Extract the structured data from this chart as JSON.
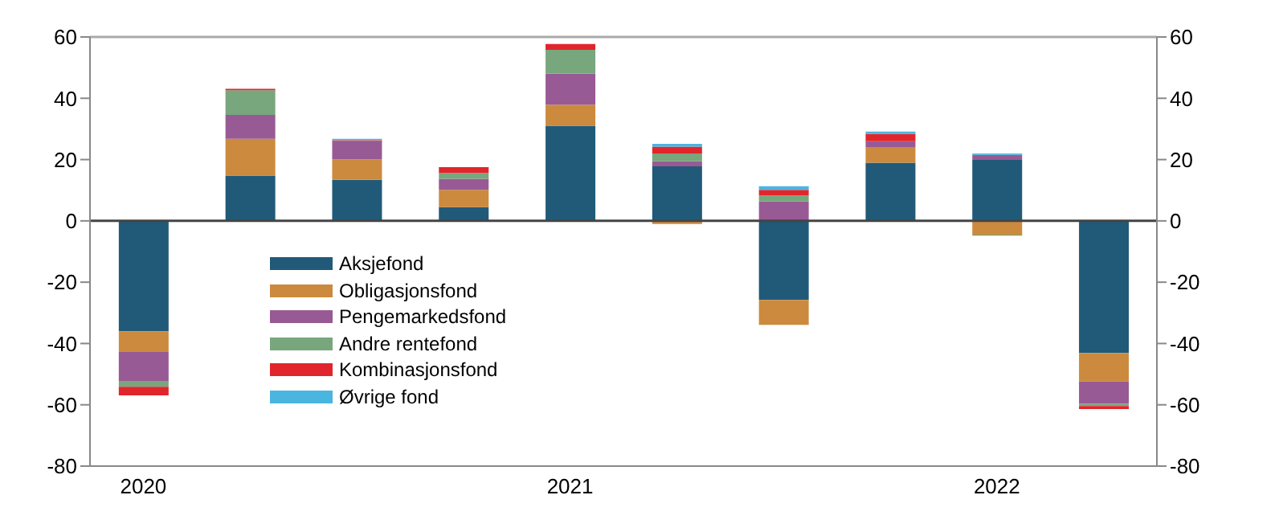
{
  "chart_data": {
    "type": "bar",
    "stacked": true,
    "categories": [
      "2020",
      null,
      null,
      null,
      "2021",
      null,
      null,
      null,
      "2022",
      null
    ],
    "series": [
      {
        "name": "Aksjefond",
        "color": "#215a78",
        "values": [
          -36,
          14.8,
          13.4,
          4.5,
          31,
          17.8,
          -25.8,
          19,
          19.9,
          -43.1
        ]
      },
      {
        "name": "Obligasjonsfond",
        "color": "#cc8a3e",
        "values": [
          -6.8,
          12,
          6.7,
          5.6,
          6.9,
          -1,
          -8.1,
          5.1,
          -4.5,
          -9.3
        ]
      },
      {
        "name": "Pengemarkedsfond",
        "color": "#985a94",
        "values": [
          -9.4,
          7.8,
          5.9,
          3.6,
          10.1,
          1.6,
          6.3,
          1.9,
          1.6,
          -7.3
        ]
      },
      {
        "name": "Andre rentefond",
        "color": "#78a67d",
        "values": [
          -1.9,
          8,
          null,
          1.9,
          7.8,
          2.6,
          2,
          null,
          -0.3,
          -0.7
        ]
      },
      {
        "name": "Kombinasjonsfond",
        "color": "#e0262c",
        "values": [
          -2.8,
          0.5,
          0.3,
          1.9,
          1.9,
          2.2,
          1.8,
          2.4,
          null,
          -1
        ]
      },
      {
        "name": "Øvrige fond",
        "color": "#4ab5e0",
        "values": [
          null,
          null,
          0.5,
          null,
          null,
          0.9,
          1.2,
          0.7,
          0.5,
          null
        ]
      }
    ],
    "ylim": [
      -80,
      60
    ],
    "yticks": [
      -80,
      -60,
      -40,
      -20,
      0,
      20,
      40,
      60
    ],
    "y2lim": [
      -80,
      60
    ],
    "y2ticks": [
      -80,
      -60,
      -40,
      -20,
      0,
      20,
      40,
      60
    ],
    "legend": "bottom left"
  }
}
